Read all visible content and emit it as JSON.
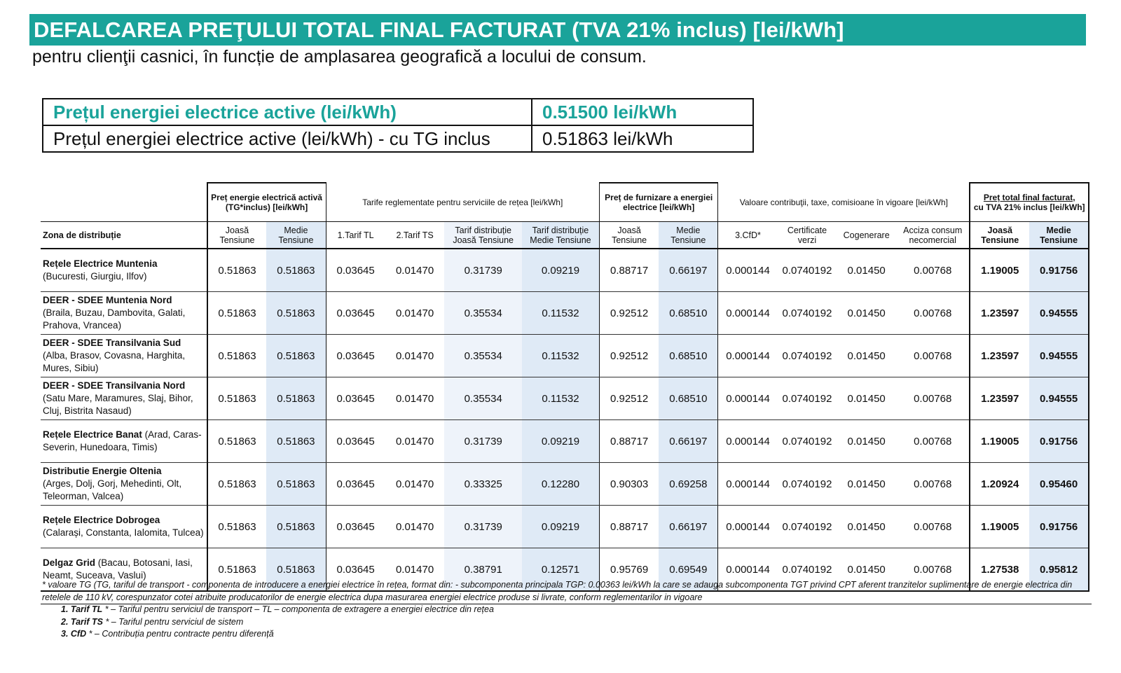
{
  "header": {
    "title": "DEFALCAREA PREŢULUI TOTAL FINAL FACTURAT (TVA 21% inclus) [lei/kWh]",
    "subtitle": "pentru clienţii casnici, în funcție de amplasarea geografică a locului de consum."
  },
  "price_box": {
    "row1_label": "Prețul energiei electrice active (lei/kWh)",
    "row1_value": "0.51500 lei/kWh",
    "row2_label": "Prețul energiei electrice active (lei/kWh) - cu TG inclus",
    "row2_value": "0.51863 lei/kWh"
  },
  "table": {
    "groups": {
      "energy": "Preț energie electrică activă (TG*inclus) [lei/kWh]",
      "tariffs": "Tarife reglementate pentru serviciile de rețea [lei/kWh]",
      "supply": "Preț de furnizare a energiei electrice [lei/kWh]",
      "contrib": "Valoare contribuţii, taxe, comisioane în vigoare [lei/kWh]",
      "total_line1": "Preț total final facturat,",
      "total_line2": "cu TVA 21% inclus [lei/kWh]"
    },
    "zone_header": "Zona de distribuție",
    "cols": {
      "joasa": "Joasă Tensiune",
      "medie": "Medie Tensiune",
      "tl": "1.Tarif TL",
      "ts": "2.Tarif TS",
      "dist_jt": "Tarif distribuție Joasă Tensiune",
      "dist_mt": "Tarif distribuție Medie Tensiune",
      "cfd": "3.CfD*",
      "cert": "Certificate verzi",
      "cogen": "Cogenerare",
      "acciza": "Acciza consum necomercial"
    },
    "rows": [
      {
        "name": "Rețele Electrice Muntenia",
        "detail": "(Bucuresti, Giurgiu, Ilfov)",
        "name_break": true,
        "v": [
          "0.51863",
          "0.51863",
          "0.03645",
          "0.01470",
          "0.31739",
          "0.09219",
          "0.88717",
          "0.66197",
          "0.000144",
          "0.0740192",
          "0.01450",
          "0.00768",
          "1.19005",
          "0.91756"
        ]
      },
      {
        "name": "DEER - SDEE Muntenia Nord",
        "detail": "(Braila, Buzau, Dambovita, Galati, Prahova, Vrancea)",
        "name_break": true,
        "v": [
          "0.51863",
          "0.51863",
          "0.03645",
          "0.01470",
          "0.35534",
          "0.11532",
          "0.92512",
          "0.68510",
          "0.000144",
          "0.0740192",
          "0.01450",
          "0.00768",
          "1.23597",
          "0.94555"
        ]
      },
      {
        "name": "DEER - SDEE Transilvania Sud",
        "detail": "(Alba, Brasov, Covasna, Harghita, Mures, Sibiu)",
        "name_break": true,
        "v": [
          "0.51863",
          "0.51863",
          "0.03645",
          "0.01470",
          "0.35534",
          "0.11532",
          "0.92512",
          "0.68510",
          "0.000144",
          "0.0740192",
          "0.01450",
          "0.00768",
          "1.23597",
          "0.94555"
        ]
      },
      {
        "name": "DEER - SDEE Transilvania Nord",
        "detail": "(Satu Mare, Maramures, Slaj, Bihor, Cluj, Bistrita Nasaud)",
        "name_break": true,
        "v": [
          "0.51863",
          "0.51863",
          "0.03645",
          "0.01470",
          "0.35534",
          "0.11532",
          "0.92512",
          "0.68510",
          "0.000144",
          "0.0740192",
          "0.01450",
          "0.00768",
          "1.23597",
          "0.94555"
        ]
      },
      {
        "name": "Rețele Electrice Banat",
        "detail": " (Arad, Caras-Severin, Hunedoara, Timis)",
        "name_break": false,
        "v": [
          "0.51863",
          "0.51863",
          "0.03645",
          "0.01470",
          "0.31739",
          "0.09219",
          "0.88717",
          "0.66197",
          "0.000144",
          "0.0740192",
          "0.01450",
          "0.00768",
          "1.19005",
          "0.91756"
        ]
      },
      {
        "name": "Distributie Energie Oltenia",
        "detail": "(Arges, Dolj, Gorj, Mehedinti, Olt, Teleorman, Valcea)",
        "name_break": true,
        "v": [
          "0.51863",
          "0.51863",
          "0.03645",
          "0.01470",
          "0.33325",
          "0.12280",
          "0.90303",
          "0.69258",
          "0.000144",
          "0.0740192",
          "0.01450",
          "0.00768",
          "1.20924",
          "0.95460"
        ]
      },
      {
        "name": "Rețele Electrice Dobrogea",
        "detail": "(Calarași, Constanta, Ialomita, Tulcea)",
        "name_break": true,
        "v": [
          "0.51863",
          "0.51863",
          "0.03645",
          "0.01470",
          "0.31739",
          "0.09219",
          "0.88717",
          "0.66197",
          "0.000144",
          "0.0740192",
          "0.01450",
          "0.00768",
          "1.19005",
          "0.91756"
        ]
      },
      {
        "name": "Delgaz Grid",
        "detail": " (Bacau, Botosani, Iasi, Neamt, Suceava, Vaslui)",
        "name_break": false,
        "v": [
          "0.51863",
          "0.51863",
          "0.03645",
          "0.01470",
          "0.38791",
          "0.12571",
          "0.95769",
          "0.69549",
          "0.000144",
          "0.0740192",
          "0.01450",
          "0.00768",
          "1.27538",
          "0.95812"
        ]
      }
    ]
  },
  "footnotes": {
    "star": "* valoare TG (TG, tariful de transport - componenta de introducere a energiei electrice în rețea, format din: - subcomponenta principala TGP: 0.00363 lei/kWh la care se adauga subcomponenta TGT privind CPT aferent tranzitelor suplimentare de energie electrica din retelele de 110 kV, corespunzator cotei atribuite producatorilor de energie electrica dupa masurarea energiei electrice produse si livrate, conform reglementarilor in vigoare",
    "n1_term": "1. Tarif TL",
    "n1_text": " * – Tariful pentru serviciul de transport – TL – componenta de extragere a energiei electrice din rețea",
    "n2_term": "2. Tarif TS",
    "n2_text": " * – Tariful pentru serviciul de sistem",
    "n3_term": "3. CfD",
    "n3_text": " * – Contribuția pentru contracte pentru diferență"
  },
  "colors": {
    "accent": "#1aa39a",
    "shade_dark": "#dfeaf6",
    "shade_light": "#eef3fa"
  }
}
